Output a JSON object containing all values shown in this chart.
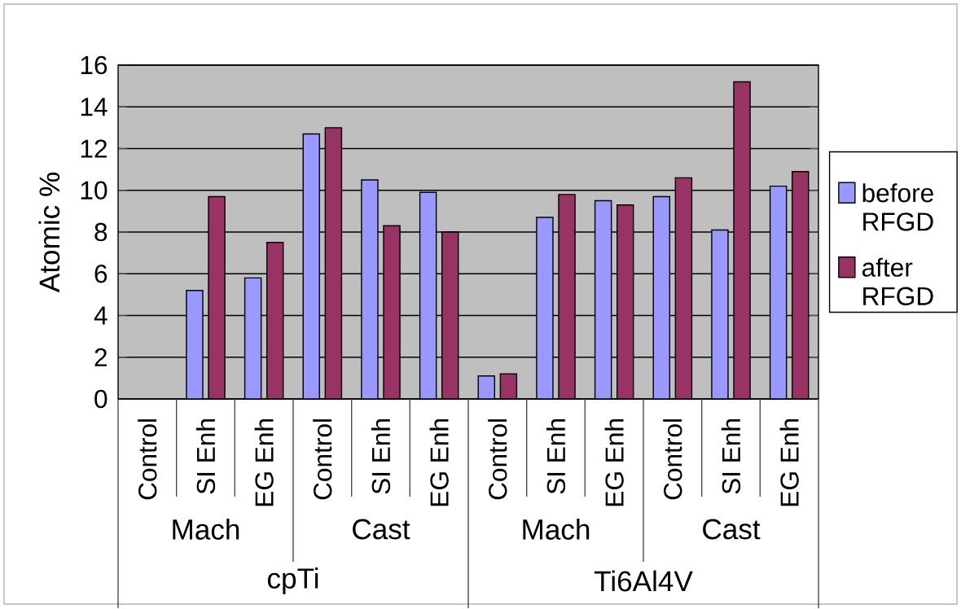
{
  "chart_data": {
    "type": "bar",
    "ylabel": "Atomic %",
    "categories": [
      "Control",
      "SI Enh",
      "EG Enh",
      "Control",
      "SI Enh",
      "EG Enh",
      "Control",
      "SI Enh",
      "EG Enh",
      "Control",
      "SI Enh",
      "EG Enh"
    ],
    "series": [
      {
        "name": "before RFGD",
        "color": "#9999ff",
        "values": [
          null,
          5.2,
          5.8,
          12.7,
          10.5,
          9.9,
          1.1,
          8.7,
          9.5,
          9.7,
          8.1,
          10.2
        ]
      },
      {
        "name": "after RFGD",
        "color": "#993366",
        "values": [
          null,
          9.7,
          7.5,
          13.0,
          8.3,
          8.0,
          1.2,
          9.8,
          9.3,
          10.6,
          15.2,
          10.9
        ]
      }
    ],
    "annotations": [
      "Mach",
      "Cast",
      "Mach",
      "Cast",
      "cpTi",
      "Ti6Al4V"
    ],
    "ylim": [
      0,
      16
    ],
    "yticks": [
      0,
      2,
      4,
      6,
      8,
      10,
      12,
      14,
      16
    ],
    "grid": "y",
    "legend": "right"
  }
}
